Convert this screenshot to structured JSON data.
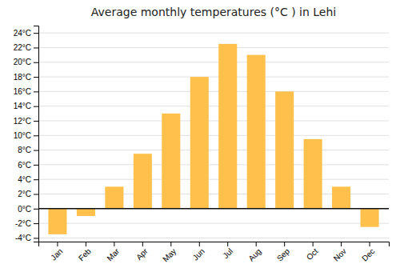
{
  "chart_data": {
    "type": "bar",
    "title": "Average monthly temperatures (°C ) in Lehi",
    "categories": [
      "Jan",
      "Feb",
      "Mar",
      "Apr",
      "May",
      "Jun",
      "Jul",
      "Aug",
      "Sep",
      "Oct",
      "Nov",
      "Dec"
    ],
    "values": [
      -3.5,
      -1.0,
      3.0,
      7.5,
      13.0,
      18.0,
      22.5,
      21.0,
      16.0,
      9.5,
      3.0,
      -2.5
    ],
    "color": "#FFC04C",
    "ylim": [
      -4.5,
      25
    ],
    "yticks": [
      {
        "value": -4,
        "label": "-4°C"
      },
      {
        "value": -2,
        "label": "-2°C"
      },
      {
        "value": 0,
        "label": "0°C"
      },
      {
        "value": 2,
        "label": "2°C"
      },
      {
        "value": 4,
        "label": "4°C"
      },
      {
        "value": 6,
        "label": "6°C"
      },
      {
        "value": 8,
        "label": "8°C"
      },
      {
        "value": 10,
        "label": "10°C"
      },
      {
        "value": 12,
        "label": "12°C"
      },
      {
        "value": 14,
        "label": "14°C"
      },
      {
        "value": 16,
        "label": "16°C"
      },
      {
        "value": 18,
        "label": "18°C"
      },
      {
        "value": 20,
        "label": "20°C"
      },
      {
        "value": 22,
        "label": "22°C"
      },
      {
        "value": 24,
        "label": "24°C"
      }
    ],
    "grid": true
  }
}
